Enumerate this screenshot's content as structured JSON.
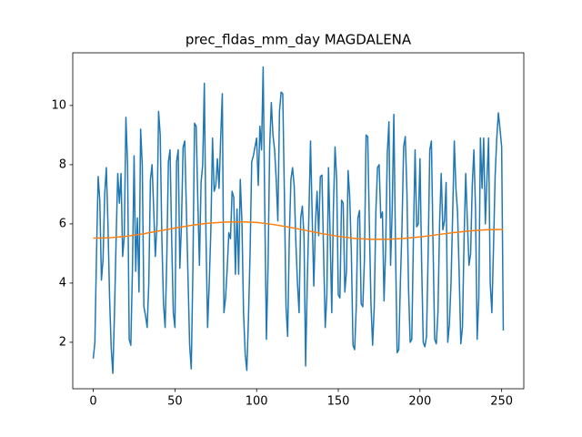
{
  "chart_data": {
    "type": "line",
    "title": "prec_fldas_mm_day MAGDALENA",
    "xlim": [
      -12.55,
      263.55
    ],
    "xticks": [
      0,
      50,
      100,
      150,
      200,
      250
    ],
    "ylim": [
      0.43,
      11.78
    ],
    "yticks": [
      2,
      4,
      6,
      8,
      10
    ],
    "series": [
      {
        "color": "#1f77b4",
        "x": [
          0,
          1,
          2,
          3,
          4,
          5,
          6,
          7,
          8,
          9,
          10,
          11,
          12,
          13,
          14,
          15,
          16,
          17,
          18,
          19,
          20,
          21,
          22,
          23,
          24,
          25,
          26,
          27,
          28,
          29,
          30,
          31,
          32,
          33,
          34,
          35,
          36,
          37,
          38,
          39,
          40,
          41,
          42,
          43,
          44,
          45,
          46,
          47,
          48,
          49,
          50,
          51,
          52,
          53,
          54,
          55,
          56,
          57,
          58,
          59,
          60,
          61,
          62,
          63,
          64,
          65,
          66,
          67,
          68,
          69,
          70,
          71,
          72,
          73,
          74,
          75,
          76,
          77,
          78,
          79,
          80,
          81,
          82,
          83,
          84,
          85,
          86,
          87,
          88,
          89,
          90,
          91,
          92,
          93,
          94,
          95,
          96,
          97,
          98,
          99,
          100,
          101,
          102,
          103,
          104,
          105,
          106,
          107,
          108,
          109,
          110,
          111,
          112,
          113,
          114,
          115,
          116,
          117,
          118,
          119,
          120,
          121,
          122,
          123,
          124,
          125,
          126,
          127,
          128,
          129,
          130,
          131,
          132,
          133,
          134,
          135,
          136,
          137,
          138,
          139,
          140,
          141,
          142,
          143,
          144,
          145,
          146,
          147,
          148,
          149,
          150,
          151,
          152,
          153,
          154,
          155,
          156,
          157,
          158,
          159,
          160,
          161,
          162,
          163,
          164,
          165,
          166,
          167,
          168,
          169,
          170,
          171,
          172,
          173,
          174,
          175,
          176,
          177,
          178,
          179,
          180,
          181,
          182,
          183,
          184,
          185,
          186,
          187,
          188,
          189,
          190,
          191,
          192,
          193,
          194,
          195,
          196,
          197,
          198,
          199,
          200,
          201,
          202,
          203,
          204,
          205,
          206,
          207,
          208,
          209,
          210,
          211,
          212,
          213,
          214,
          215,
          216,
          217,
          218,
          219,
          220,
          221,
          222,
          223,
          224,
          225,
          226,
          227,
          228,
          229,
          230,
          231,
          232,
          233,
          234,
          235,
          236,
          237,
          238,
          239,
          240,
          241,
          242,
          243,
          244,
          245,
          246,
          247,
          248,
          249,
          250,
          251
        ],
        "values": [
          1.45,
          2.0,
          5.0,
          7.6,
          6.8,
          4.1,
          4.8,
          7.0,
          7.9,
          6.0,
          3.5,
          1.8,
          0.95,
          3.0,
          5.5,
          7.7,
          6.7,
          7.7,
          4.9,
          5.6,
          9.6,
          8.0,
          2.1,
          1.9,
          4.5,
          8.3,
          4.4,
          6.2,
          3.7,
          9.2,
          8.0,
          3.2,
          2.9,
          2.5,
          4.0,
          7.5,
          8.0,
          6.5,
          4.9,
          6.0,
          9.8,
          9.0,
          5.5,
          3.3,
          2.5,
          4.8,
          8.1,
          8.5,
          5.5,
          3.0,
          2.5,
          8.1,
          8.5,
          4.5,
          6.0,
          8.6,
          8.8,
          6.5,
          4.2,
          1.9,
          1.1,
          4.5,
          9.4,
          9.3,
          6.8,
          4.6,
          7.4,
          8.0,
          10.75,
          5.6,
          2.5,
          4.0,
          5.8,
          8.9,
          7.1,
          7.3,
          8.2,
          7.2,
          8.9,
          10.4,
          3.0,
          3.5,
          4.5,
          5.7,
          5.5,
          7.1,
          6.9,
          4.3,
          6.5,
          4.3,
          7.5,
          6.1,
          3.0,
          1.6,
          1.05,
          2.8,
          5.0,
          8.1,
          8.3,
          8.6,
          8.9,
          7.3,
          9.3,
          8.5,
          11.3,
          6.5,
          2.1,
          4.6,
          8.6,
          10.1,
          9.0,
          8.5,
          7.5,
          6.1,
          9.8,
          10.45,
          10.4,
          7.0,
          3.2,
          2.2,
          5.5,
          7.5,
          7.9,
          7.3,
          5.4,
          4.0,
          3.0,
          6.2,
          6.6,
          5.6,
          1.2,
          4.0,
          6.3,
          8.8,
          6.3,
          3.9,
          6.0,
          7.1,
          5.6,
          7.6,
          7.65,
          5.0,
          2.5,
          3.6,
          7.9,
          5.6,
          3.0,
          6.5,
          8.6,
          7.5,
          3.6,
          3.5,
          6.8,
          6.7,
          3.7,
          4.4,
          7.8,
          6.9,
          5.0,
          1.9,
          1.75,
          3.2,
          6.2,
          6.45,
          3.3,
          3.2,
          4.8,
          9.0,
          8.95,
          6.0,
          3.3,
          1.9,
          3.2,
          6.4,
          7.9,
          8.0,
          6.2,
          6.4,
          3.4,
          5.2,
          8.4,
          9.45,
          4.6,
          6.5,
          9.7,
          5.3,
          1.65,
          1.75,
          4.0,
          5.9,
          8.6,
          8.95,
          7.1,
          3.8,
          2.0,
          2.1,
          5.6,
          8.5,
          5.9,
          6.0,
          8.2,
          4.7,
          2.0,
          1.85,
          2.2,
          5.0,
          8.5,
          8.8,
          5.3,
          2.1,
          1.95,
          3.0,
          6.0,
          7.7,
          5.8,
          6.1,
          7.4,
          2.0,
          2.6,
          4.0,
          6.3,
          8.8,
          7.2,
          6.4,
          4.3,
          1.95,
          2.5,
          5.5,
          7.7,
          6.1,
          4.6,
          5.0,
          7.3,
          8.5,
          6.5,
          2.1,
          3.5,
          8.9,
          7.2,
          8.9,
          6.0,
          7.5,
          8.9,
          4.0,
          3.0,
          5.2,
          7.6,
          8.9,
          9.75,
          9.2,
          8.6,
          2.4
        ]
      },
      {
        "color": "#ff7f0e",
        "x": [
          0,
          10,
          20,
          30,
          40,
          50,
          60,
          70,
          80,
          90,
          100,
          110,
          120,
          130,
          140,
          150,
          160,
          170,
          180,
          190,
          200,
          210,
          220,
          230,
          240,
          250,
          251
        ],
        "values": [
          5.52,
          5.53,
          5.58,
          5.66,
          5.76,
          5.86,
          5.95,
          6.02,
          6.06,
          6.07,
          6.05,
          5.98,
          5.89,
          5.78,
          5.67,
          5.58,
          5.51,
          5.48,
          5.48,
          5.51,
          5.56,
          5.63,
          5.7,
          5.76,
          5.8,
          5.81,
          5.81
        ]
      }
    ]
  }
}
